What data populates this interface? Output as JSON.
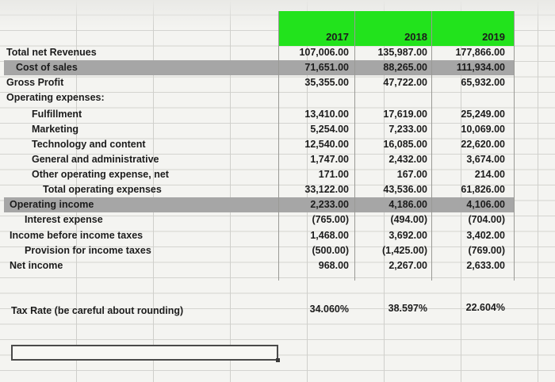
{
  "columns": [
    "2017",
    "2018",
    "2019"
  ],
  "rows": [
    {
      "label": "Total net Revenues",
      "indent": 0,
      "values": [
        "107,006.00",
        "135,987.00",
        "177,866.00"
      ]
    },
    {
      "label": "Cost of sales",
      "indent": 1,
      "values": [
        "71,651.00",
        "88,265.00",
        "111,934.00"
      ]
    },
    {
      "label": "Gross Profit",
      "indent": 0,
      "values": [
        "35,355.00",
        "47,722.00",
        "65,932.00"
      ]
    },
    {
      "label": "Operating expenses:",
      "indent": 0,
      "values": [
        "",
        "",
        ""
      ]
    },
    {
      "label": "Fulfillment",
      "indent": 2,
      "values": [
        "13,410.00",
        "17,619.00",
        "25,249.00"
      ]
    },
    {
      "label": "Marketing",
      "indent": 2,
      "values": [
        "5,254.00",
        "7,233.00",
        "10,069.00"
      ]
    },
    {
      "label": "Technology and content",
      "indent": 2,
      "values": [
        "12,540.00",
        "16,085.00",
        "22,620.00"
      ]
    },
    {
      "label": "General and administrative",
      "indent": 2,
      "values": [
        "1,747.00",
        "2,432.00",
        "3,674.00"
      ]
    },
    {
      "label": "Other operating expense, net",
      "indent": 2,
      "values": [
        "171.00",
        "167.00",
        "214.00"
      ]
    },
    {
      "label": "Total operating expenses",
      "indent": 3,
      "values": [
        "33,122.00",
        "43,536.00",
        "61,826.00"
      ]
    },
    {
      "label": "Operating income",
      "indent": 0,
      "values": [
        "2,233.00",
        "4,186.00",
        "4,106.00"
      ]
    },
    {
      "label": "Interest expense",
      "indent": 1,
      "values": [
        "(765.00)",
        "(494.00)",
        "(704.00)"
      ]
    },
    {
      "label": "Income before income taxes",
      "indent": 0,
      "values": [
        "1,468.00",
        "3,692.00",
        "3,402.00"
      ]
    },
    {
      "label": "Provision for income taxes",
      "indent": 1,
      "values": [
        "(500.00)",
        "(1,425.00)",
        "(769.00)"
      ]
    },
    {
      "label": "Net income",
      "indent": 0,
      "values": [
        "968.00",
        "2,267.00",
        "2,633.00"
      ]
    }
  ],
  "tax_rate": {
    "label": "Tax Rate (be careful about rounding)",
    "values": [
      "34.060%",
      "38.597%",
      "22.604%"
    ]
  },
  "answer_box": {
    "value": ""
  },
  "colors": {
    "header_green": "#22e31c",
    "highlight_gray": "#a6a6a6"
  }
}
